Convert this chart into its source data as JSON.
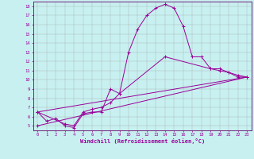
{
  "bg_color": "#c8f0f0",
  "line_color": "#990099",
  "grid_color": "#b0d8d8",
  "spine_color": "#660066",
  "xlim": [
    -0.5,
    23.5
  ],
  "ylim": [
    4.5,
    18.5
  ],
  "xticks": [
    0,
    1,
    2,
    3,
    4,
    5,
    6,
    7,
    8,
    9,
    10,
    11,
    12,
    13,
    14,
    15,
    16,
    17,
    18,
    19,
    20,
    21,
    22,
    23
  ],
  "yticks": [
    5,
    6,
    7,
    8,
    9,
    10,
    11,
    12,
    13,
    14,
    15,
    16,
    17,
    18
  ],
  "xlabel": "Windchill (Refroidissement éolien,°C)",
  "line1_x": [
    0,
    1,
    2,
    3,
    4,
    5,
    6,
    7,
    8,
    9,
    10,
    11,
    12,
    13,
    14,
    15,
    16,
    17,
    18,
    19,
    20,
    21,
    22,
    23
  ],
  "line1_y": [
    6.5,
    5.5,
    5.8,
    5.0,
    4.8,
    6.3,
    6.5,
    6.5,
    9.0,
    8.5,
    13.0,
    15.5,
    17.0,
    17.8,
    18.2,
    17.8,
    15.8,
    12.5,
    12.5,
    11.2,
    11.2,
    10.8,
    10.3,
    10.3
  ],
  "line2_x": [
    0,
    3,
    4,
    5,
    6,
    7,
    8,
    9,
    14,
    19,
    20,
    21,
    22,
    23
  ],
  "line2_y": [
    6.5,
    5.2,
    5.0,
    6.5,
    6.8,
    7.0,
    7.5,
    8.5,
    12.5,
    11.2,
    11.0,
    10.8,
    10.5,
    10.3
  ],
  "line3_x": [
    0,
    23
  ],
  "line3_y": [
    6.5,
    10.3
  ],
  "line4_x": [
    0,
    23
  ],
  "line4_y": [
    5.0,
    10.3
  ]
}
